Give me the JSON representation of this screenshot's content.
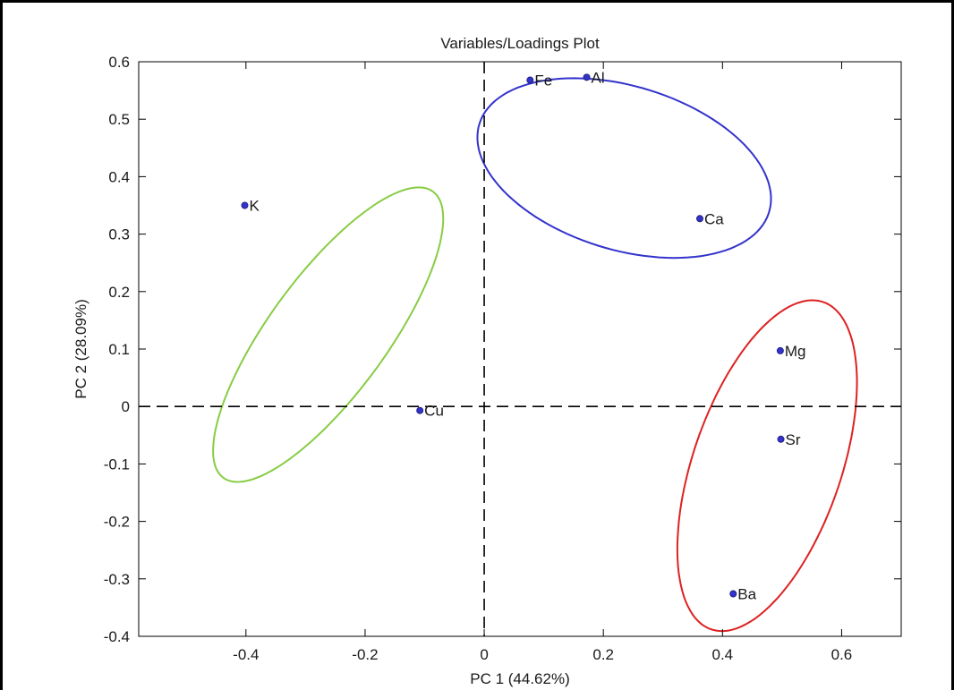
{
  "chart_data": {
    "type": "scatter",
    "title": "Variables/Loadings Plot",
    "xlabel": "PC 1 (44.62%)",
    "ylabel": "PC 2 (28.09%)",
    "xlim": [
      -0.58,
      0.7
    ],
    "ylim": [
      -0.4,
      0.6
    ],
    "xticks": [
      -0.4,
      -0.2,
      0,
      0.2,
      0.4,
      0.6
    ],
    "xtick_labels": [
      "-0.4",
      "-0.2",
      "0",
      "0.2",
      "0.4",
      "0.6"
    ],
    "yticks": [
      -0.4,
      -0.3,
      -0.2,
      -0.1,
      0,
      0.1,
      0.2,
      0.3,
      0.4,
      0.5,
      0.6
    ],
    "ytick_labels": [
      "-0.4",
      "-0.3",
      "-0.2",
      "-0.1",
      "0",
      "0.1",
      "0.2",
      "0.3",
      "0.4",
      "0.5",
      "0.6"
    ],
    "grid": false,
    "zero_lines": "dashed",
    "marker_color": "#3333cc",
    "points": [
      {
        "label": "Fe",
        "x": 0.077,
        "y": 0.568
      },
      {
        "label": "Al",
        "x": 0.172,
        "y": 0.573
      },
      {
        "label": "Ca",
        "x": 0.362,
        "y": 0.327
      },
      {
        "label": "K",
        "x": -0.402,
        "y": 0.35
      },
      {
        "label": "Cu",
        "x": -0.108,
        "y": -0.007
      },
      {
        "label": "Mg",
        "x": 0.497,
        "y": 0.097
      },
      {
        "label": "Sr",
        "x": 0.498,
        "y": -0.057
      },
      {
        "label": "Ba",
        "x": 0.418,
        "y": -0.326
      }
    ],
    "groups": [
      {
        "color": "#3333cc",
        "members": [
          "Fe",
          "Al",
          "Ca"
        ],
        "center": [
          0.235,
          0.415
        ],
        "semi_major": 0.255,
        "semi_minor": 0.142,
        "angle_deg": -18
      },
      {
        "color": "#88cc44",
        "members": [
          "K",
          "Cu"
        ],
        "center": [
          -0.262,
          0.125
        ],
        "semi_major": 0.305,
        "semi_minor": 0.1,
        "angle_deg": 55
      },
      {
        "color": "#dd2222",
        "members": [
          "Mg",
          "Sr",
          "Ba"
        ],
        "center": [
          0.475,
          -0.103
        ],
        "semi_major": 0.3,
        "semi_minor": 0.125,
        "angle_deg": 72
      }
    ]
  }
}
